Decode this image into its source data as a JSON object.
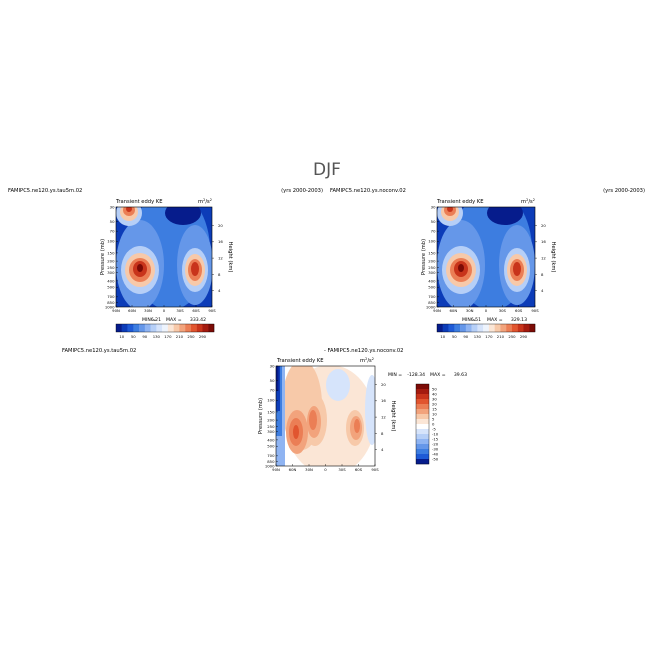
{
  "page": {
    "title": "DJF"
  },
  "chart_data": [
    {
      "type": "heatmap",
      "case": "FAMIPC5.ne120.ys.tau5m.02",
      "period": "(yrs 2000-2003)",
      "field": "Transient eddy KE",
      "units": "m²/s²",
      "units_base": "m",
      "units_exp": "2",
      "units_den": "/s",
      "ylabel": "Pressure (mb)",
      "y2label": "Height (km)",
      "x_ticks": [
        "90N",
        "60N",
        "30N",
        "0",
        "30S",
        "60S",
        "90S"
      ],
      "y_ticks": [
        "30",
        "50",
        "70",
        "100",
        "150",
        "200",
        "250",
        "300",
        "400",
        "500",
        "700",
        "850",
        "1000"
      ],
      "y2_ticks": [
        "20",
        "16",
        "12",
        "8",
        "4"
      ],
      "min_label": "MIN =",
      "min_value": "6.21",
      "max_label": "MAX =",
      "max_value": "333.42",
      "colorbar_labels": [
        "10",
        "50",
        "90",
        "130",
        "170",
        "210",
        "250",
        "290"
      ],
      "colorbar_colors": [
        "#061c8c",
        "#0c3cb8",
        "#1e5ad6",
        "#3d7de0",
        "#6597e9",
        "#8fb4f2",
        "#b6cff7",
        "#d6e4fb",
        "#eef4fd",
        "#fbe6d6",
        "#f7c9a9",
        "#f2a37c",
        "#eb7e55",
        "#e1552f",
        "#c8341b",
        "#a41b0f",
        "#7c0b06"
      ],
      "peaks": [
        {
          "lat": -65,
          "p": 60,
          "value": 150
        },
        {
          "lat": -47,
          "p": 300,
          "value": 333
        },
        {
          "lat": 45,
          "p": 300,
          "value": 290
        }
      ]
    },
    {
      "type": "heatmap",
      "case": "FAMIPC5.ne120.ys.noconv.02",
      "period": "(yrs 2000-2003)",
      "field": "Transient eddy KE",
      "units": "m²/s²",
      "units_base": "m",
      "units_exp": "2",
      "units_den": "/s",
      "ylabel": "Pressure (mb)",
      "y2label": "Height (km)",
      "x_ticks": [
        "90N",
        "60N",
        "30N",
        "0",
        "30S",
        "60S",
        "90S"
      ],
      "y_ticks": [
        "30",
        "50",
        "70",
        "100",
        "150",
        "200",
        "250",
        "300",
        "400",
        "500",
        "700",
        "850",
        "1000"
      ],
      "y2_ticks": [
        "20",
        "16",
        "12",
        "8",
        "4"
      ],
      "min_label": "MIN =",
      "min_value": "6.51",
      "max_label": "MAX =",
      "max_value": "329.13",
      "colorbar_labels": [
        "10",
        "50",
        "90",
        "130",
        "170",
        "210",
        "250",
        "290"
      ],
      "colorbar_colors": [
        "#061c8c",
        "#0c3cb8",
        "#1e5ad6",
        "#3d7de0",
        "#6597e9",
        "#8fb4f2",
        "#b6cff7",
        "#d6e4fb",
        "#eef4fd",
        "#fbe6d6",
        "#f7c9a9",
        "#f2a37c",
        "#eb7e55",
        "#e1552f",
        "#c8341b",
        "#a41b0f",
        "#7c0b06"
      ],
      "peaks": [
        {
          "lat": -65,
          "p": 60,
          "value": 150
        },
        {
          "lat": -47,
          "p": 300,
          "value": 329
        },
        {
          "lat": 45,
          "p": 300,
          "value": 280
        }
      ]
    },
    {
      "type": "heatmap",
      "case": "FAMIPC5.ne120.ys.tau5m.02",
      "title_prefix": "-",
      "case_diff": "FAMIPC5.ne120.ys.noconv.02",
      "field": "Transient eddy KE",
      "units": "m²/s²",
      "units_base": "m",
      "units_exp": "2",
      "units_den": "/s",
      "ylabel": "Pressure (mb)",
      "y2label": "Height (km)",
      "x_ticks": [
        "90N",
        "60N",
        "30N",
        "0",
        "30S",
        "60S",
        "90S"
      ],
      "y_ticks": [
        "30",
        "50",
        "70",
        "100",
        "150",
        "200",
        "250",
        "300",
        "400",
        "500",
        "700",
        "850",
        "1000"
      ],
      "y2_ticks": [
        "20",
        "16",
        "12",
        "8",
        "4"
      ],
      "min_label": "MIN =",
      "min_value": "-128.34",
      "max_label": "MAX =",
      "max_value": "39.63",
      "colorbar_labels": [
        "50",
        "40",
        "30",
        "20",
        "15",
        "10",
        "5",
        "0",
        "-5",
        "-10",
        "-15",
        "-20",
        "-30",
        "-40",
        "-50"
      ],
      "colorbar_colors": [
        "#7c0b06",
        "#a41b0f",
        "#c8341b",
        "#e1552f",
        "#eb7e55",
        "#f2a37c",
        "#f7c9a9",
        "#fbe6d6",
        "#ffffff",
        "#d6e4fb",
        "#b6cff7",
        "#8fb4f2",
        "#6597e9",
        "#3d7de0",
        "#1e5ad6",
        "#061c8c"
      ]
    }
  ]
}
